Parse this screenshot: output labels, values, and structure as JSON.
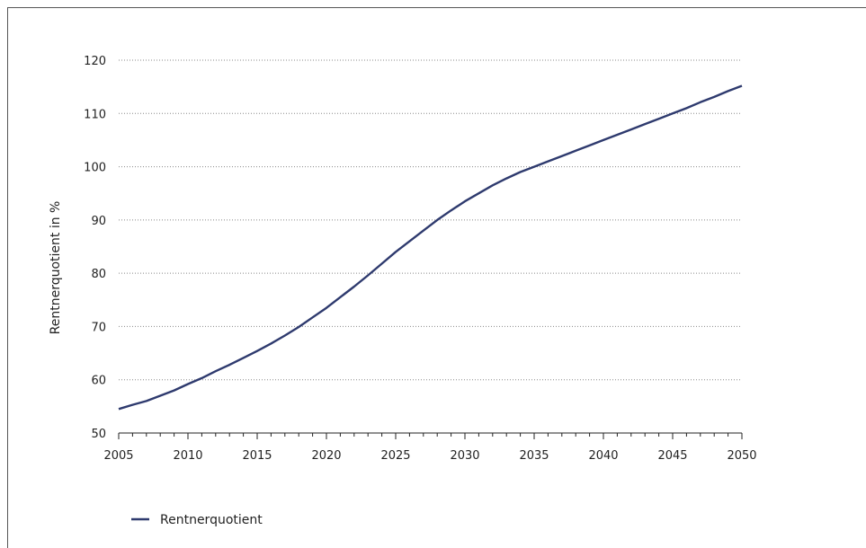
{
  "chart_data": {
    "type": "line",
    "title": "",
    "xlabel": "",
    "ylabel": "Rentnerquotient in %",
    "xlim": [
      2005,
      2050
    ],
    "ylim": [
      50,
      120
    ],
    "x_ticks": [
      2005,
      2010,
      2015,
      2020,
      2025,
      2030,
      2035,
      2040,
      2045,
      2050
    ],
    "y_ticks": [
      50,
      60,
      70,
      80,
      90,
      100,
      110,
      120
    ],
    "grid": "horizontal-dotted",
    "legend_position": "bottom-left",
    "colors": {
      "series": "#2e3a6e",
      "grid": "#888888",
      "axis": "#222222"
    },
    "series": [
      {
        "name": "Rentnerquotient",
        "x": [
          2005,
          2006,
          2007,
          2008,
          2009,
          2010,
          2011,
          2012,
          2013,
          2014,
          2015,
          2016,
          2017,
          2018,
          2019,
          2020,
          2021,
          2022,
          2023,
          2024,
          2025,
          2026,
          2027,
          2028,
          2029,
          2030,
          2031,
          2032,
          2033,
          2034,
          2035,
          2036,
          2037,
          2038,
          2039,
          2040,
          2041,
          2042,
          2043,
          2044,
          2045,
          2046,
          2047,
          2048,
          2049,
          2050
        ],
        "values": [
          54.5,
          55.3,
          56.0,
          57.0,
          58.0,
          59.2,
          60.3,
          61.6,
          62.8,
          64.1,
          65.4,
          66.8,
          68.3,
          69.9,
          71.7,
          73.5,
          75.5,
          77.5,
          79.6,
          81.8,
          84.0,
          86.0,
          88.0,
          90.0,
          91.8,
          93.5,
          95.0,
          96.5,
          97.8,
          99.0,
          100.0,
          101.0,
          102.0,
          103.0,
          104.0,
          105.0,
          106.0,
          107.0,
          108.0,
          109.0,
          110.0,
          111.0,
          112.1,
          113.1,
          114.2,
          115.2
        ]
      }
    ]
  }
}
